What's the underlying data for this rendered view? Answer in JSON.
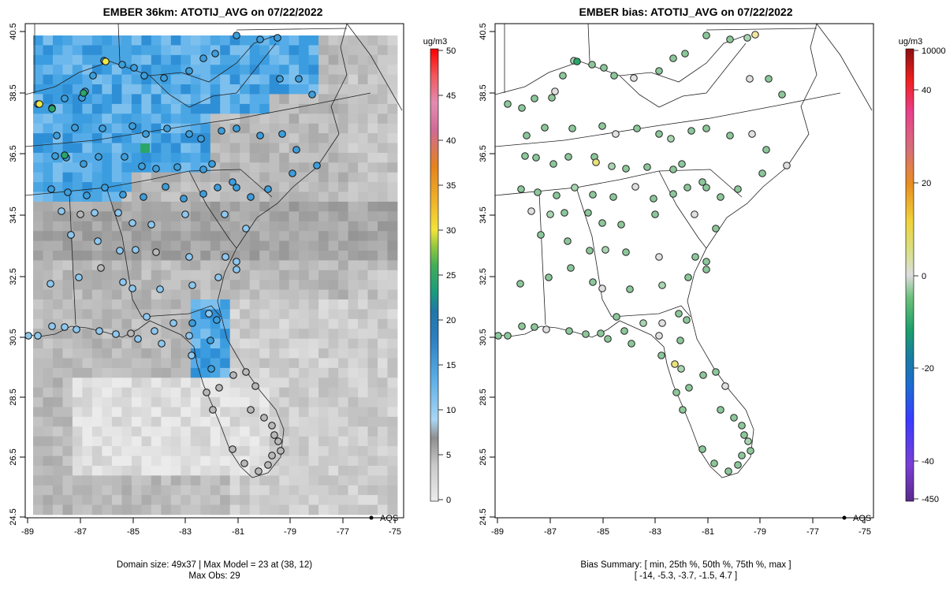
{
  "panels": [
    {
      "title": "EMBER 36km: ATOTIJ_AVG on 07/22/2022",
      "x_ticks": [
        "-89",
        "-87",
        "-85",
        "-83",
        "-81",
        "-79",
        "-77",
        "-75"
      ],
      "y_ticks": [
        "24.5",
        "26.5",
        "28.5",
        "30.5",
        "32.5",
        "34.5",
        "36.5",
        "38.5",
        "40.5"
      ],
      "legend_label": "AQS",
      "colorbar": {
        "unit": "ug/m3",
        "tick_labels": [
          "0",
          "5",
          "10",
          "15",
          "20",
          "25",
          "30",
          "35",
          "40",
          "45",
          "50"
        ],
        "range": [
          0,
          50
        ]
      },
      "caption": [
        "Domain size: 49x37 | Max Model = 23 at (38, 12)",
        "Max Obs: 29"
      ]
    },
    {
      "title": "EMBER bias: ATOTIJ_AVG on 07/22/2022",
      "x_ticks": [
        "-89",
        "-87",
        "-85",
        "-83",
        "-81",
        "-79",
        "-77",
        "-75"
      ],
      "y_ticks": [
        "24.5",
        "26.5",
        "28.5",
        "30.5",
        "32.5",
        "34.5",
        "36.5",
        "38.5",
        "40.5"
      ],
      "legend_label": "AQS",
      "colorbar": {
        "unit": "ug/m3",
        "tick_labels": [
          "-450",
          "-40",
          "-20",
          "0",
          "20",
          "40",
          "10000"
        ]
      },
      "caption": [
        "Bias Summary: [ min, 25th %, 50th %, 75th %, max ]",
        "[ -14,  -5.3,  -3.7,  -1.5,  4.7 ]"
      ]
    }
  ],
  "bias_summary": {
    "min": -14,
    "p25": -5.3,
    "p50": -3.7,
    "p75": -1.5,
    "max": 4.7
  },
  "colors": {
    "blue_high": "#3d9edb",
    "blue_low": "#8ec8ef",
    "gray_mid": "#b8b8b8",
    "gray_light": "#e0e0e0",
    "green_bias": "#8cc79a",
    "green_dark": "#2aa66b",
    "yellow": "#f2e646"
  }
}
